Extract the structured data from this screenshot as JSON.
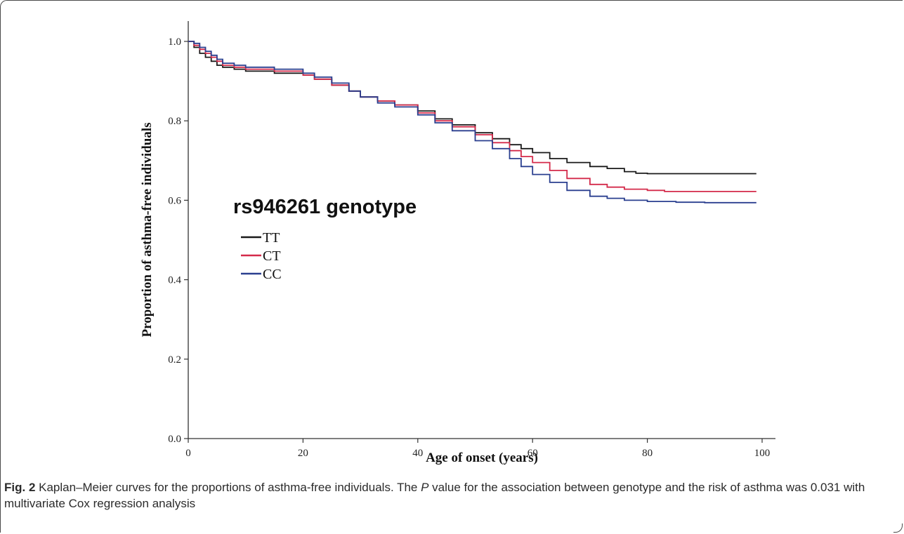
{
  "chart_data": {
    "type": "line",
    "step": true,
    "xlabel": "Age of onset (years)",
    "ylabel": "Proportion of asthma-free individuals",
    "xlim": [
      0,
      100
    ],
    "ylim": [
      0.0,
      1.05
    ],
    "xticks": [
      "0",
      "20",
      "40",
      "60",
      "80",
      "100"
    ],
    "xtick_values": [
      0,
      20,
      40,
      60,
      80,
      100
    ],
    "yticks": [
      "0.0",
      "0.2",
      "0.4",
      "0.6",
      "0.8",
      "1.0"
    ],
    "ytick_values": [
      0.0,
      0.2,
      0.4,
      0.6,
      0.8,
      1.0
    ],
    "grid": false,
    "legend": {
      "title": "rs946261 genotype",
      "placement": "center-left"
    },
    "series": [
      {
        "name": "TT",
        "color": "#1a1a1a",
        "x": [
          0,
          1,
          2,
          3,
          4,
          5,
          6,
          8,
          10,
          15,
          20,
          22,
          25,
          28,
          30,
          33,
          36,
          40,
          43,
          46,
          50,
          53,
          56,
          58,
          60,
          63,
          66,
          70,
          73,
          76,
          78,
          80,
          90,
          99
        ],
        "y": [
          1.0,
          0.985,
          0.97,
          0.96,
          0.95,
          0.94,
          0.935,
          0.93,
          0.925,
          0.92,
          0.915,
          0.905,
          0.89,
          0.875,
          0.86,
          0.85,
          0.84,
          0.825,
          0.805,
          0.79,
          0.77,
          0.755,
          0.74,
          0.73,
          0.72,
          0.705,
          0.695,
          0.685,
          0.68,
          0.672,
          0.668,
          0.667,
          0.667,
          0.667
        ]
      },
      {
        "name": "CT",
        "color": "#d42a4a",
        "x": [
          0,
          1,
          2,
          3,
          4,
          5,
          6,
          8,
          10,
          15,
          20,
          22,
          25,
          28,
          30,
          33,
          36,
          40,
          43,
          46,
          50,
          53,
          56,
          58,
          60,
          63,
          66,
          70,
          73,
          76,
          80,
          83,
          90,
          99
        ],
        "y": [
          1.0,
          0.99,
          0.98,
          0.97,
          0.96,
          0.95,
          0.94,
          0.935,
          0.93,
          0.925,
          0.915,
          0.905,
          0.89,
          0.875,
          0.86,
          0.85,
          0.84,
          0.82,
          0.8,
          0.785,
          0.765,
          0.745,
          0.725,
          0.71,
          0.695,
          0.675,
          0.655,
          0.64,
          0.633,
          0.628,
          0.625,
          0.622,
          0.622,
          0.622
        ]
      },
      {
        "name": "CC",
        "color": "#2a3f8f",
        "x": [
          0,
          1,
          2,
          3,
          4,
          5,
          6,
          8,
          10,
          15,
          20,
          22,
          25,
          28,
          30,
          33,
          36,
          40,
          43,
          46,
          50,
          53,
          56,
          58,
          60,
          63,
          66,
          70,
          73,
          76,
          80,
          85,
          90,
          99
        ],
        "y": [
          1.0,
          0.995,
          0.985,
          0.975,
          0.965,
          0.955,
          0.945,
          0.94,
          0.935,
          0.93,
          0.92,
          0.91,
          0.895,
          0.875,
          0.86,
          0.845,
          0.835,
          0.815,
          0.795,
          0.775,
          0.75,
          0.73,
          0.705,
          0.685,
          0.665,
          0.645,
          0.625,
          0.61,
          0.605,
          0.6,
          0.597,
          0.595,
          0.594,
          0.594
        ]
      }
    ]
  },
  "caption": {
    "label": "Fig. 2",
    "text_before_p": " Kaplan–Meier curves for the proportions of asthma-free individuals. The ",
    "p_symbol": "P",
    "text_after_p": " value for the association between genotype and the risk of asthma was 0.031 with multivariate Cox regression analysis"
  }
}
